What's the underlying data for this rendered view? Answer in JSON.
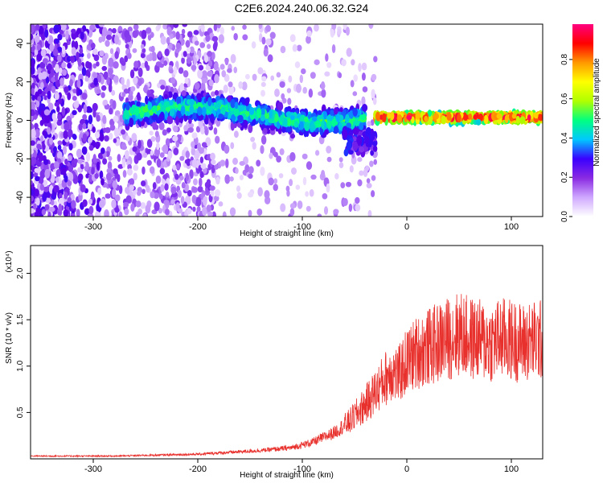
{
  "title": "C2E6.2024.240.06.32.G24",
  "chart_data": [
    {
      "type": "heatmap",
      "xlabel": "Height of straight line (km)",
      "ylabel": "Frequency (Hz)",
      "xlim": [
        -360,
        130
      ],
      "ylim": [
        -50,
        50
      ],
      "xticks": [
        -300,
        -200,
        -100,
        0,
        100
      ],
      "yticks": [
        -40,
        -20,
        0,
        20,
        40
      ],
      "colorbar": {
        "label": "Normalized spectral amplitude",
        "range": [
          0.0,
          0.98
        ],
        "ticks": [
          "0.0",
          "0.2",
          "0.4",
          "0.6",
          "0.8"
        ],
        "colors": [
          "#ffffff",
          "#cfa8ff",
          "#8a2be2",
          "#3a00ff",
          "#00c8ff",
          "#00ff80",
          "#b0ff00",
          "#ffff00",
          "#ff9900",
          "#ff0000",
          "#ff0080"
        ]
      },
      "features": [
        {
          "x_range": [
            -360,
            -270
          ],
          "description_free": true,
          "band_center": 0,
          "band_halfwidth": 50,
          "amplitude": 0.15
        },
        {
          "x_range": [
            -270,
            -40
          ],
          "band_center": 3,
          "band_halfwidth": 8,
          "amplitude": 0.35
        },
        {
          "x_range": [
            -30,
            130
          ],
          "band_center": 1,
          "band_halfwidth": 3,
          "amplitude": 0.85
        }
      ]
    },
    {
      "type": "line",
      "xlabel": "Height of straight line (km)",
      "ylabel": "SNR (10 * v/v)",
      "y_multiplier": "(x10^4)",
      "xlim": [
        -360,
        130
      ],
      "ylim": [
        0,
        2.3
      ],
      "xticks": [
        -300,
        -200,
        -100,
        0,
        100
      ],
      "yticks": [
        "0.5",
        "1.0",
        "1.5",
        "2.0"
      ],
      "color": "#e8302c",
      "series": [
        {
          "x": [
            -360,
            -320,
            -280,
            -240,
            -200,
            -170,
            -140,
            -110,
            -90,
            -70,
            -55,
            -45,
            -35,
            -25,
            -15,
            -8,
            0,
            10,
            20,
            30,
            40,
            50,
            60,
            70,
            80,
            90,
            100,
            110,
            120,
            130
          ],
          "values": [
            0.03,
            0.03,
            0.03,
            0.04,
            0.05,
            0.07,
            0.09,
            0.12,
            0.18,
            0.28,
            0.4,
            0.52,
            0.65,
            0.8,
            0.95,
            0.9,
            1.05,
            1.15,
            1.2,
            1.25,
            1.3,
            1.35,
            1.3,
            1.28,
            1.25,
            1.3,
            1.28,
            1.25,
            1.27,
            1.28
          ]
        }
      ]
    }
  ]
}
